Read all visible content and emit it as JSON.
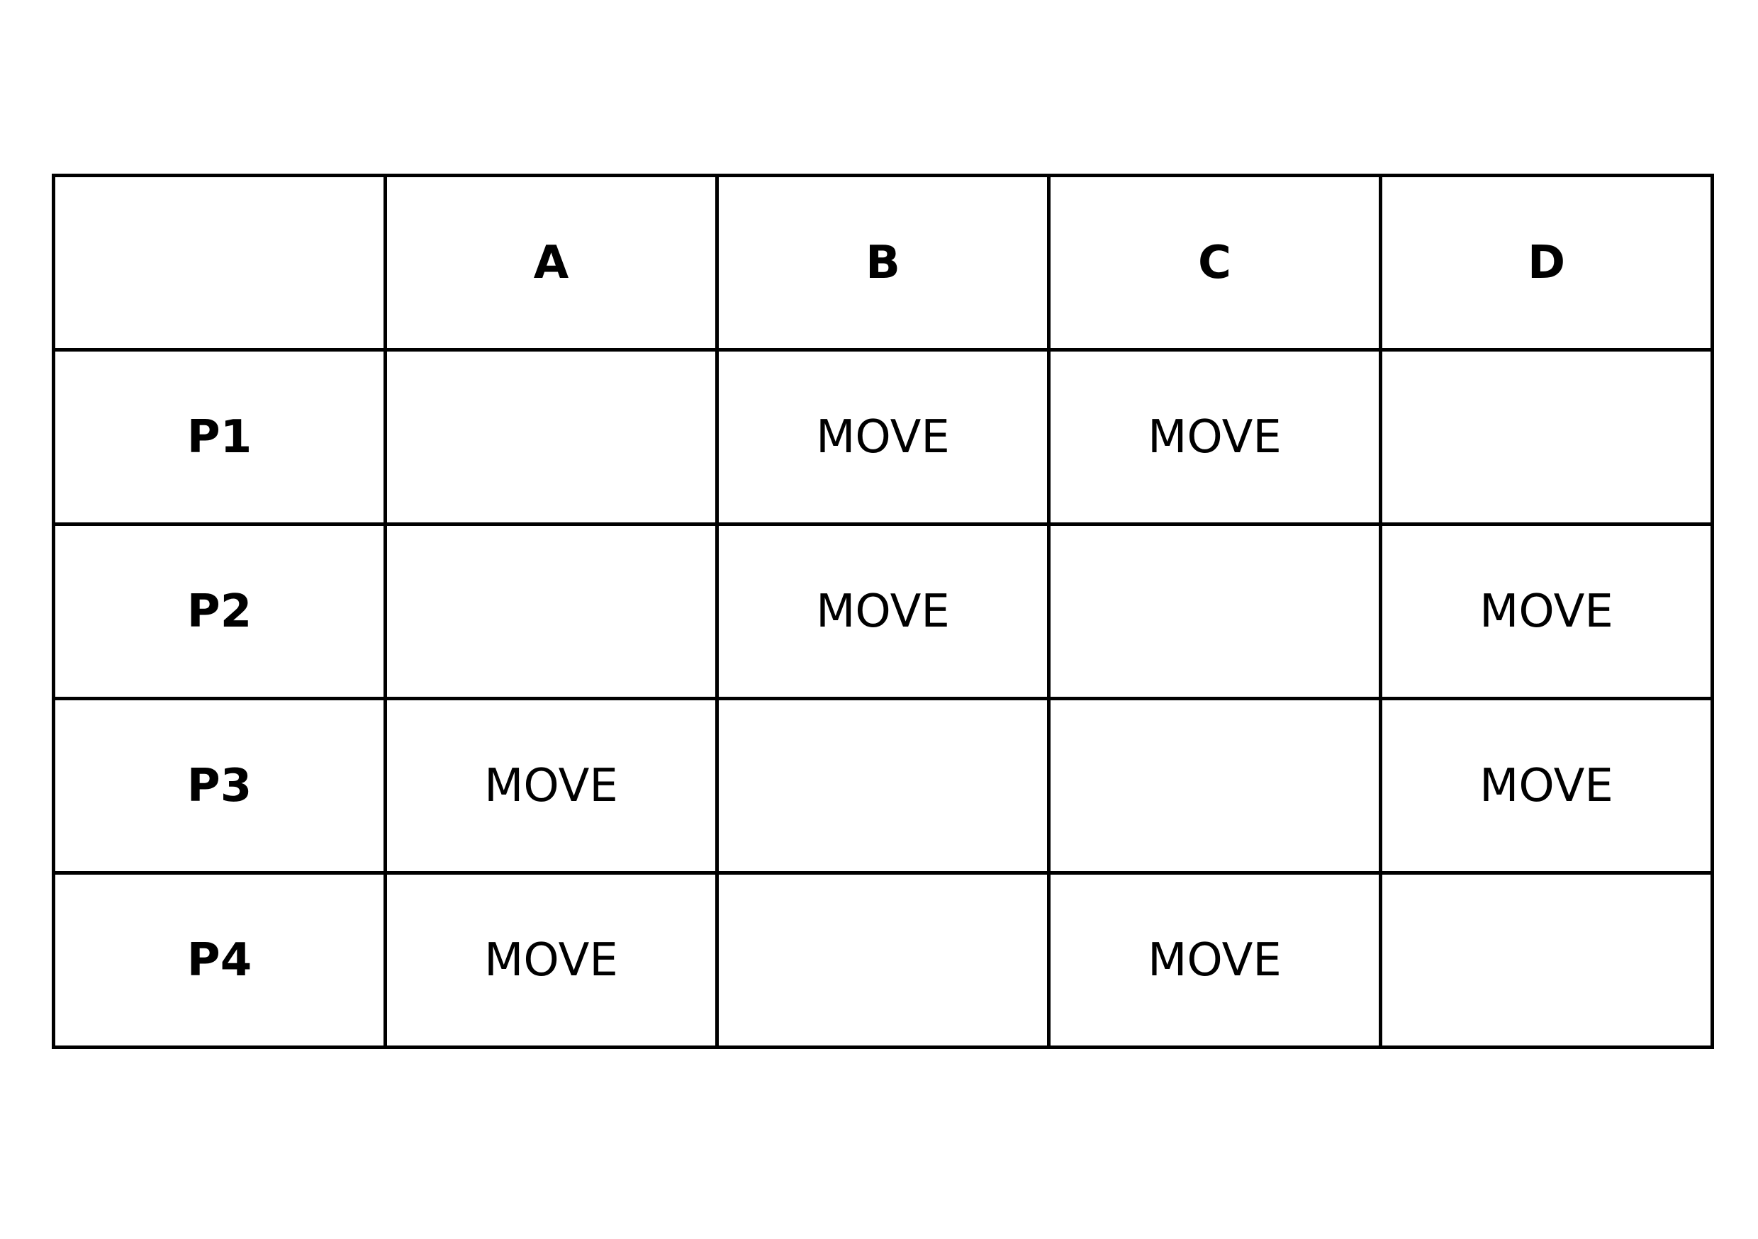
{
  "table": {
    "columns": [
      "A",
      "B",
      "C",
      "D"
    ],
    "rows": [
      {
        "label": "P1",
        "cells": [
          "",
          "MOVE",
          "MOVE",
          ""
        ]
      },
      {
        "label": "P2",
        "cells": [
          "",
          "MOVE",
          "",
          "MOVE"
        ]
      },
      {
        "label": "P3",
        "cells": [
          "MOVE",
          "",
          "",
          "MOVE"
        ]
      },
      {
        "label": "P4",
        "cells": [
          "MOVE",
          "",
          "MOVE",
          ""
        ]
      }
    ]
  }
}
